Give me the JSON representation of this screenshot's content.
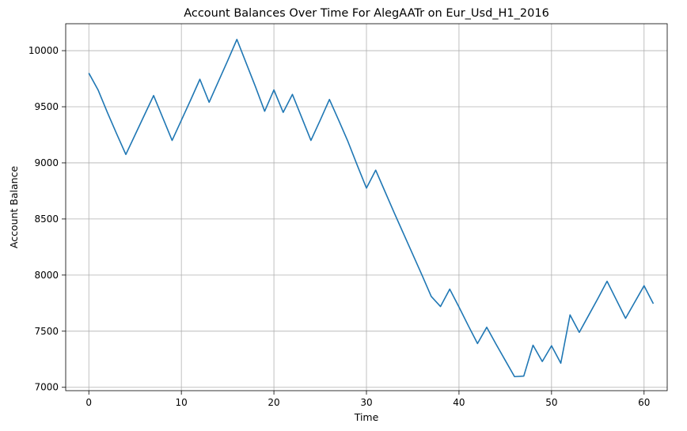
{
  "chart_data": {
    "type": "line",
    "title": "Account Balances Over Time For AlegAATr on Eur_Usd_H1_2016",
    "xlabel": "Time",
    "ylabel": "Account Balance",
    "xlim": [
      -2.5,
      62.5
    ],
    "ylim": [
      6970,
      10240
    ],
    "xticks": [
      0,
      10,
      20,
      30,
      40,
      50,
      60
    ],
    "yticks": [
      7000,
      7500,
      8000,
      8500,
      9000,
      9500,
      10000
    ],
    "grid": true,
    "series": [
      {
        "color": "#1f77b4",
        "x": [
          0,
          1,
          2,
          3,
          4,
          5,
          6,
          7,
          8,
          9,
          10,
          11,
          12,
          13,
          14,
          15,
          16,
          17,
          18,
          19,
          20,
          21,
          22,
          23,
          24,
          25,
          26,
          27,
          28,
          29,
          30,
          31,
          32,
          33,
          34,
          35,
          36,
          37,
          38,
          39,
          40,
          41,
          42,
          43,
          44,
          45,
          46,
          47,
          48,
          49,
          50,
          51,
          52,
          53,
          54,
          55,
          56,
          57,
          58,
          59,
          60,
          61
        ],
        "y": [
          9800,
          9650,
          9450,
          9260,
          9075,
          9250,
          9425,
          9600,
          9400,
          9200,
          9380,
          9560,
          9745,
          9540,
          9725,
          9910,
          10100,
          9890,
          9680,
          9460,
          9650,
          9450,
          9610,
          9405,
          9200,
          9380,
          9565,
          9380,
          9190,
          8980,
          8775,
          8935,
          8745,
          8555,
          8370,
          8185,
          8000,
          7810,
          7720,
          7875,
          7715,
          7550,
          7390,
          7535,
          7385,
          7240,
          7095,
          7100,
          7375,
          7230,
          7370,
          7215,
          7645,
          7490,
          7640,
          7790,
          7945,
          7780,
          7615,
          7760,
          7905,
          7745
        ]
      }
    ]
  }
}
